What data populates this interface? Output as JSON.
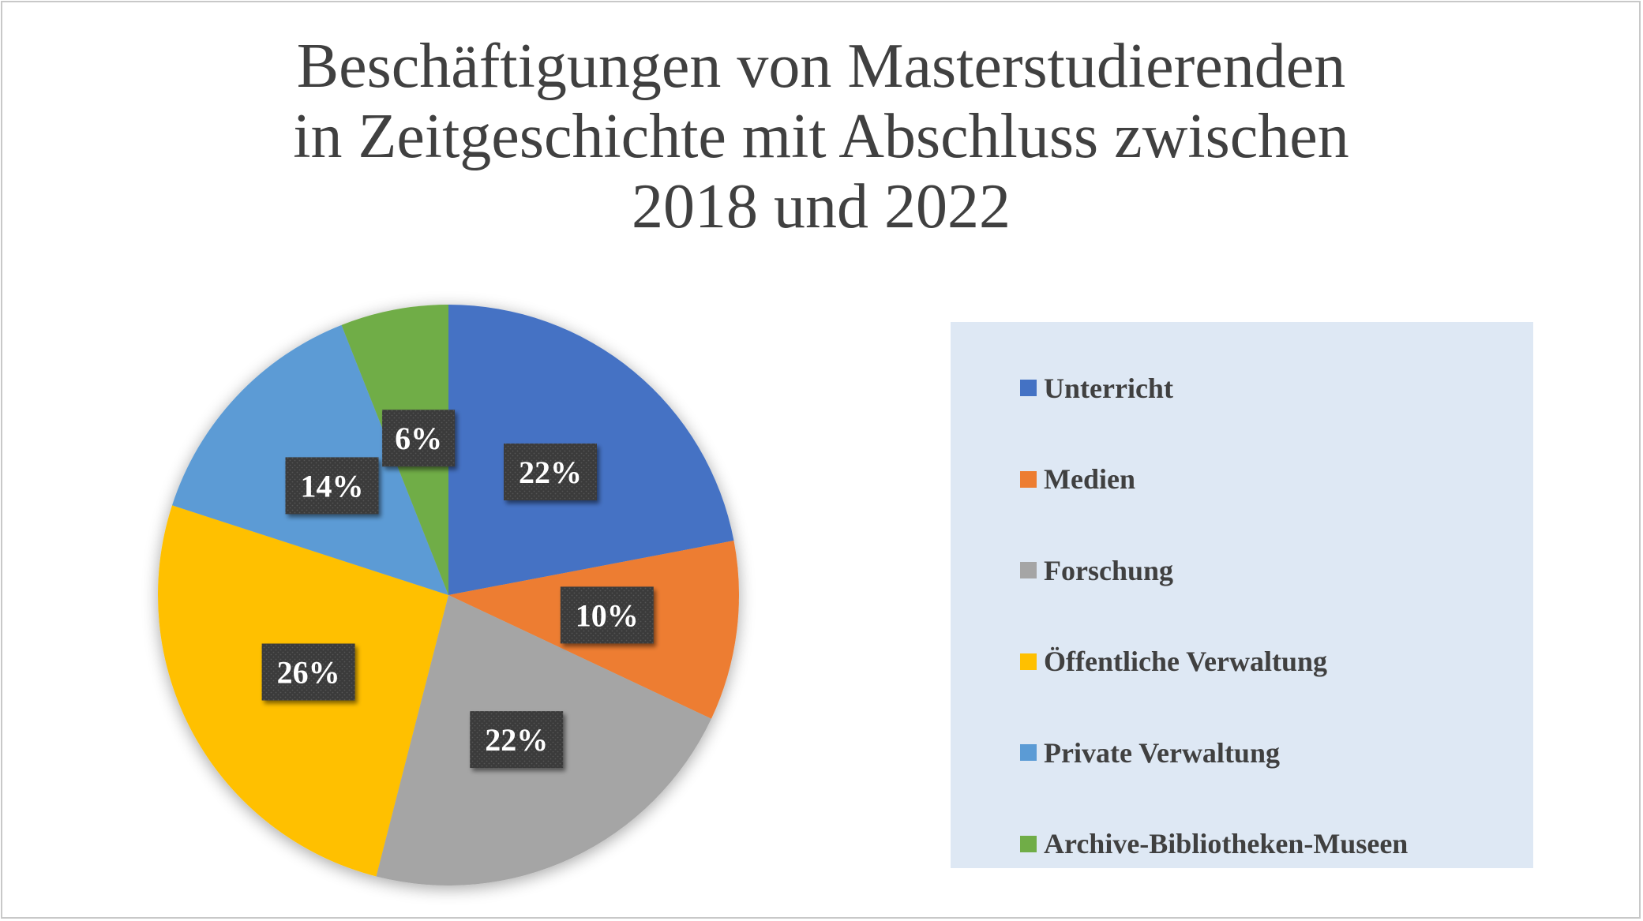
{
  "chart_data": {
    "type": "pie",
    "title": "Beschäftigungen von Masterstudierenden in Zeitgeschichte mit Abschluss zwischen 2018 und 2022",
    "title_lines": [
      "Beschäftigungen von Masterstudierenden",
      "in Zeitgeschichte mit Abschluss zwischen",
      "2018 und 2022"
    ],
    "categories": [
      "Unterricht",
      "Medien",
      "Forschung",
      "Öffentliche Verwaltung",
      "Private Verwaltung",
      "Archive-Bibliotheken-Museen"
    ],
    "values": [
      22,
      10,
      22,
      26,
      14,
      6
    ],
    "data_labels": [
      "22%",
      "10%",
      "22%",
      "26%",
      "14%",
      "6%"
    ],
    "colors": [
      "#4472c4",
      "#ed7d31",
      "#a5a5a5",
      "#ffc000",
      "#5b9bd5",
      "#70ad47"
    ],
    "start_angle": "12 o'clock, clockwise",
    "legend_position": "right"
  }
}
